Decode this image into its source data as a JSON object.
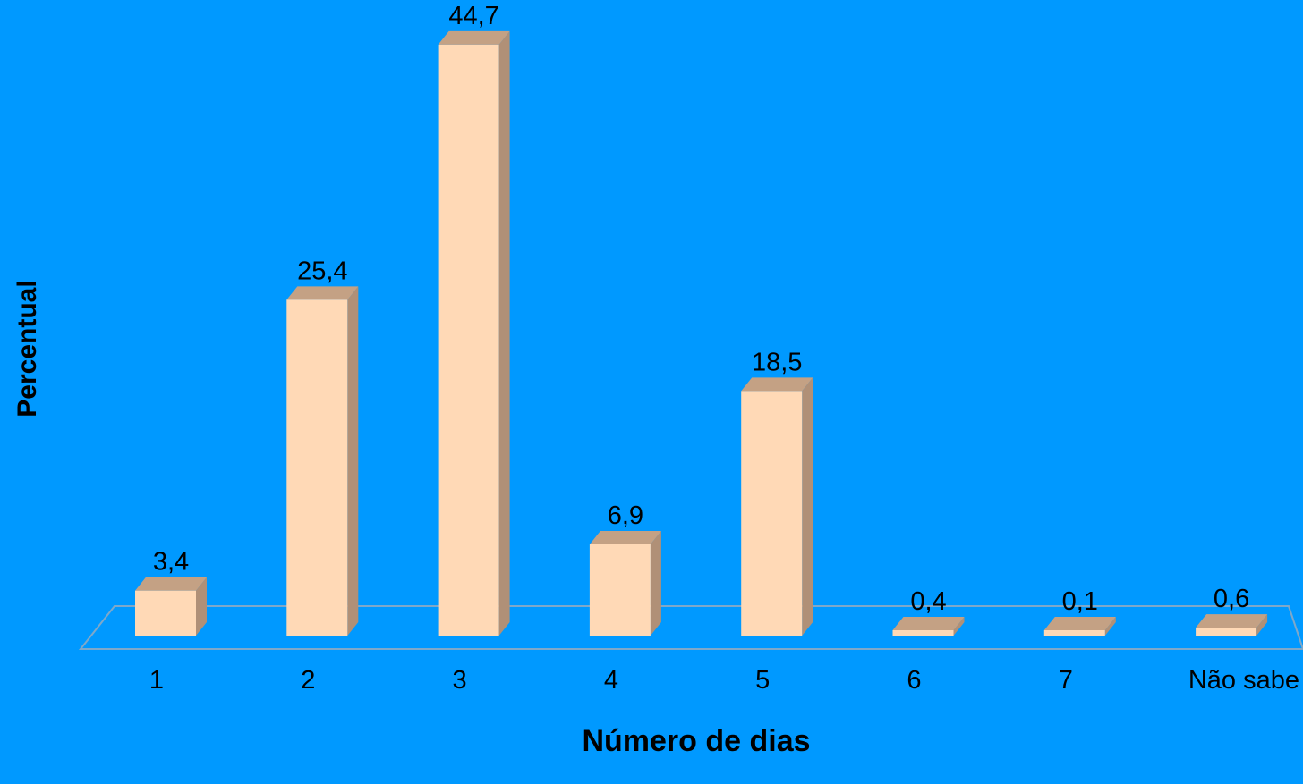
{
  "chart_data": {
    "type": "bar",
    "title": "",
    "xlabel": "Número de dias",
    "ylabel": "Percentual",
    "categories": [
      "1",
      "2",
      "3",
      "4",
      "5",
      "6",
      "7",
      "Não sabe"
    ],
    "values": [
      3.4,
      25.4,
      44.7,
      6.9,
      18.5,
      0.4,
      0.1,
      0.6
    ],
    "value_labels": [
      "3,4",
      "25,4",
      "44,7",
      "6,9",
      "18,5",
      "0,4",
      "0,1",
      "0,6"
    ],
    "ylim": [
      0,
      45
    ],
    "grid": false,
    "legend": "none",
    "style": "3d-column"
  },
  "colors": {
    "background": "#0099ff",
    "bar_front": "#ffd9b6",
    "bar_side": "#b09077",
    "bar_top": "#c4a184",
    "floor_line": "#7fa8c9",
    "text": "#000000"
  }
}
